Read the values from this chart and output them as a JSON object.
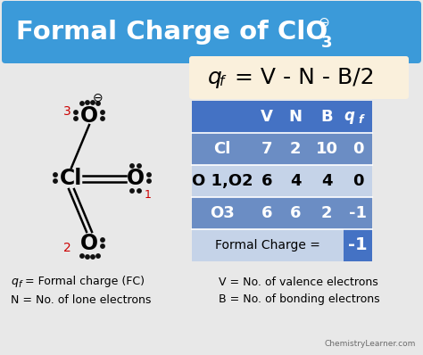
{
  "title_bg": "#3B9AD9",
  "title_text_color": "#FFFFFF",
  "bg_color": "#E8E8E8",
  "formula_bg": "#FAF0DC",
  "table_header_bg": "#4472C4",
  "table_row1_bg": "#6B8DC4",
  "table_row2_bg": "#C5D3E8",
  "table_row3_bg": "#6B8DC4",
  "table_footer_bg": "#C5D3E8",
  "table_footer_val_bg": "#4472C4",
  "table_rows": [
    [
      "Cl",
      "7",
      "2",
      "10",
      "0"
    ],
    [
      "O 1,O2",
      "6",
      "4",
      "4",
      "0"
    ],
    [
      "O3",
      "6",
      "6",
      "2",
      "-1"
    ]
  ],
  "table_footer": "Formal Charge =",
  "table_footer_val": "-1",
  "watermark": "ChemistryLearner.com",
  "dot_color": "#111111",
  "red_color": "#CC0000"
}
